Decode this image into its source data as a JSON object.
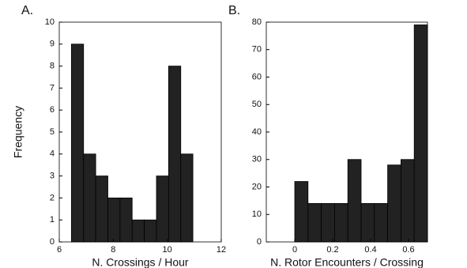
{
  "chart_data": [
    {
      "type": "histogram",
      "panel_label": "A.",
      "ylabel": "Frequency",
      "xlabel": "N. Crossings / Hour",
      "bins": [
        6.45,
        6.9,
        7.35,
        7.8,
        8.25,
        8.7,
        9.15,
        9.6,
        10.05,
        10.5,
        10.95
      ],
      "values": [
        9,
        4,
        3,
        2,
        2,
        1,
        1,
        3,
        8,
        4
      ],
      "color": "#222222",
      "xlim": [
        6,
        12
      ],
      "xticks": [
        6,
        8,
        10,
        12
      ],
      "ylim": [
        0,
        10
      ],
      "yticks": [
        0,
        1,
        2,
        3,
        4,
        5,
        6,
        7,
        8,
        9,
        10
      ]
    },
    {
      "type": "histogram",
      "panel_label": "B.",
      "xlabel": "N. Rotor Encounters / Crossing",
      "bins": [
        0,
        0.07,
        0.14,
        0.21,
        0.28,
        0.35,
        0.42,
        0.49,
        0.56,
        0.63,
        0.7
      ],
      "values": [
        22,
        14,
        14,
        14,
        30,
        14,
        14,
        28,
        30,
        79
      ],
      "color": "#222222",
      "xlim": [
        -0.15,
        0.7
      ],
      "xticks": [
        0,
        0.2,
        0.4,
        0.6
      ],
      "ylim": [
        0,
        80
      ],
      "yticks": [
        0,
        10,
        20,
        30,
        40,
        50,
        60,
        70,
        80
      ]
    }
  ]
}
